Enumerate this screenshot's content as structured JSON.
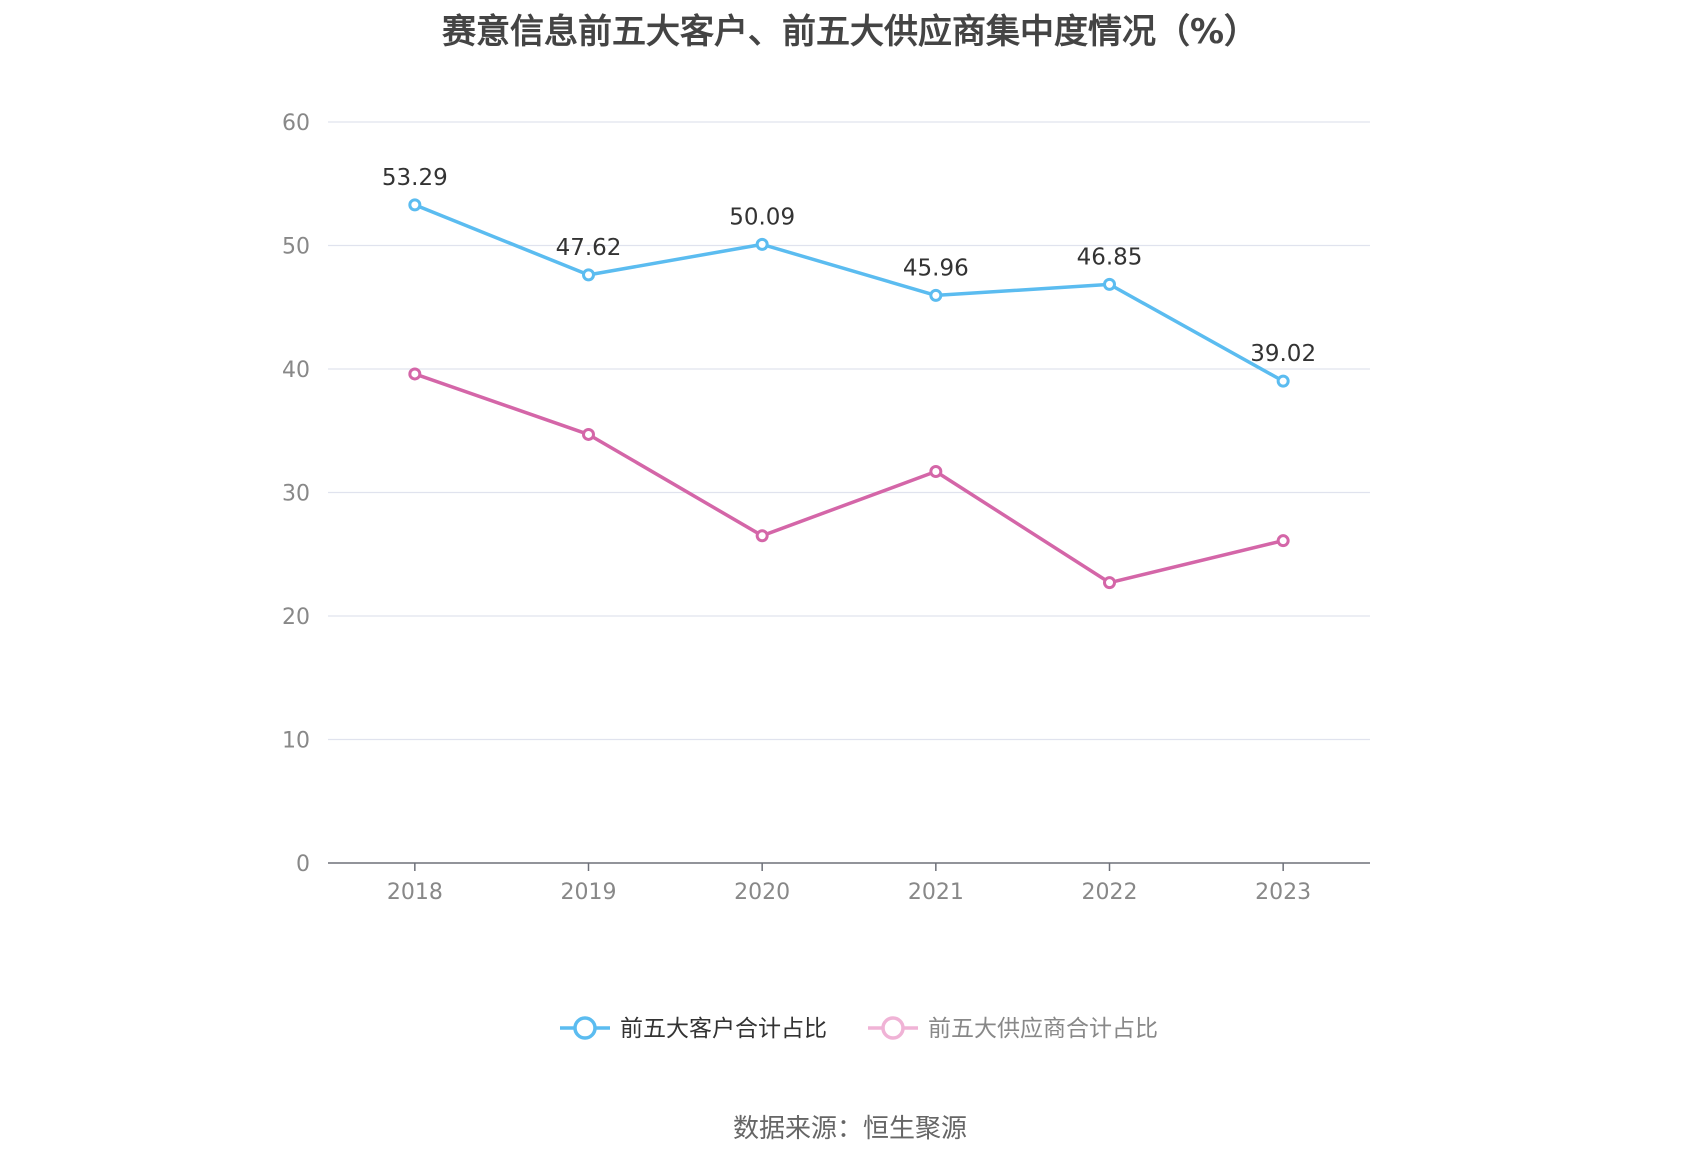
{
  "title": "赛意信息前五大客户、前五大供应商集中度情况（%）",
  "source": "数据来源：恒生聚源",
  "chart_data": {
    "type": "line",
    "categories": [
      "2018",
      "2019",
      "2020",
      "2021",
      "2022",
      "2023"
    ],
    "series": [
      {
        "name": "前五大客户合计占比",
        "values": [
          53.29,
          47.62,
          50.09,
          45.96,
          46.85,
          39.02
        ],
        "color": "#5bbcf0",
        "show_labels": true,
        "legend_active": true
      },
      {
        "name": "前五大供应商合计占比",
        "values": [
          39.6,
          34.7,
          26.5,
          31.7,
          22.7,
          26.1
        ],
        "color": "#d466a8",
        "show_labels": false,
        "legend_active": false
      }
    ],
    "ylim": [
      0,
      60
    ],
    "yticks": [
      0,
      10,
      20,
      30,
      40,
      50,
      60
    ],
    "grid": true,
    "legend_position": "bottom-center"
  }
}
